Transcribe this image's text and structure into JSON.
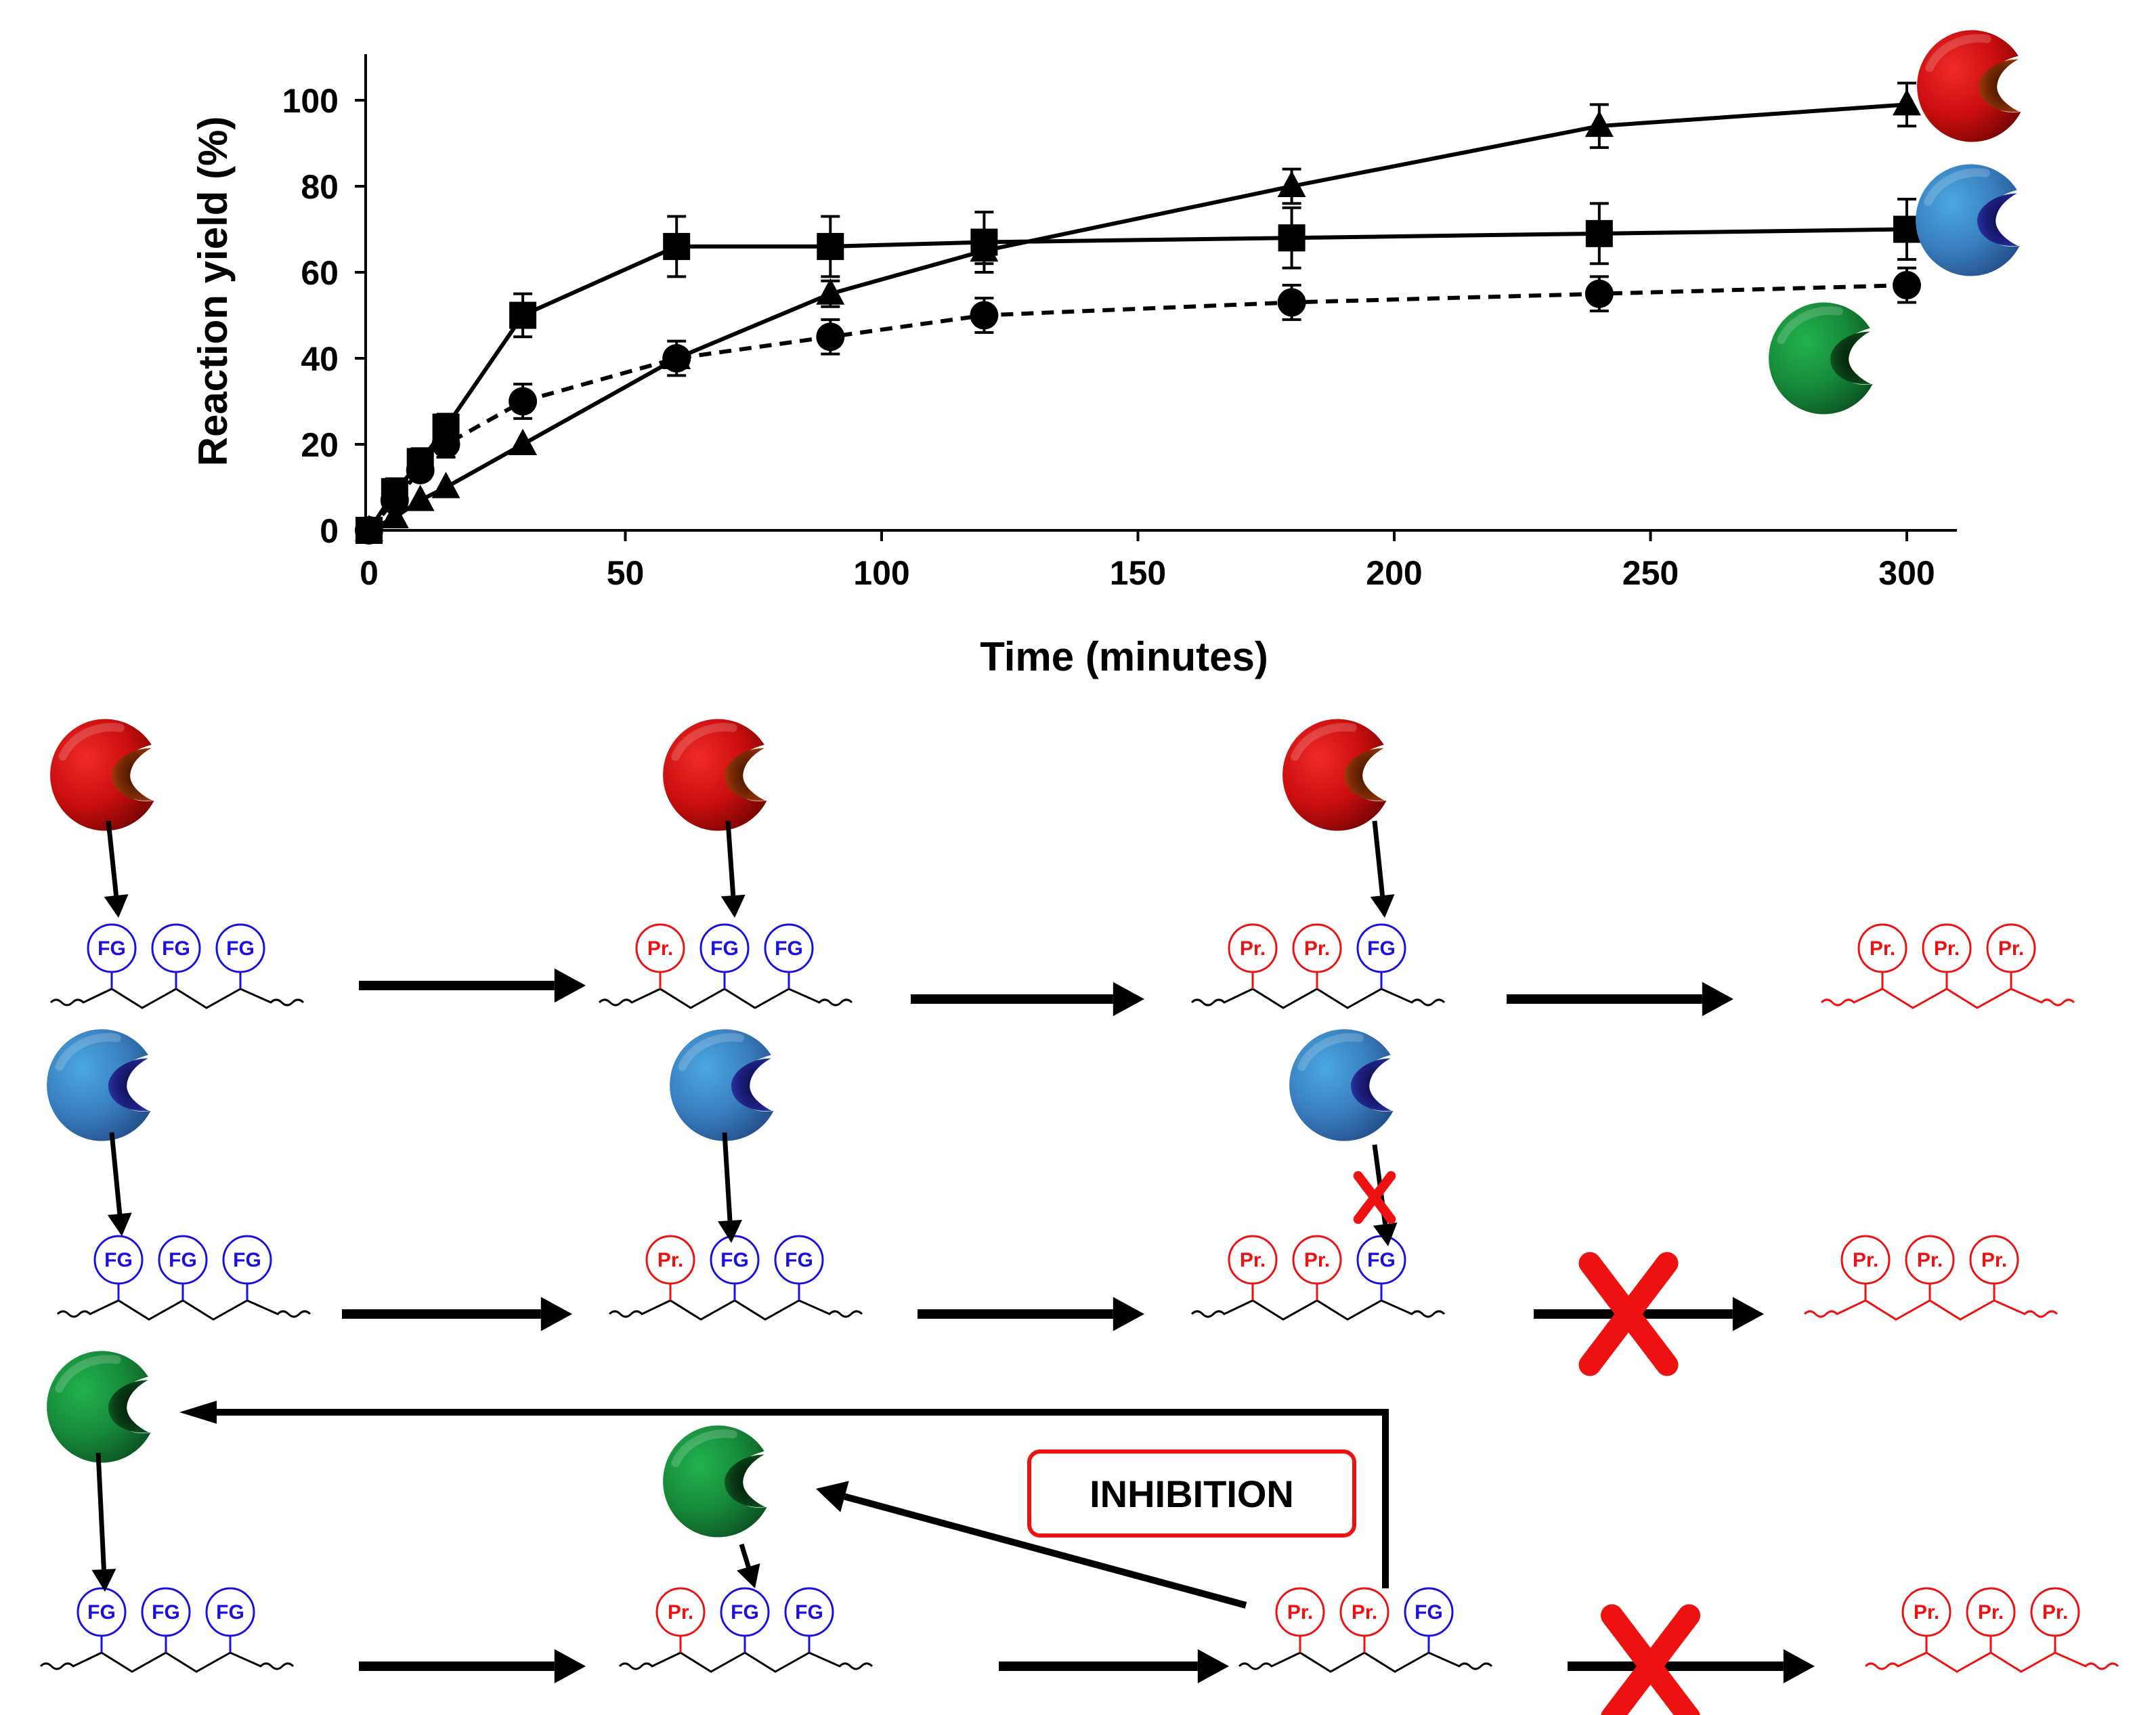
{
  "chart_data": {
    "type": "line",
    "title": "",
    "xlabel": "Time (minutes)",
    "ylabel": "Reaction yield (%)",
    "xlim": [
      0,
      310
    ],
    "ylim": [
      0,
      110
    ],
    "xticks": [
      0,
      50,
      100,
      150,
      200,
      250,
      300
    ],
    "yticks": [
      0,
      20,
      40,
      60,
      80,
      100
    ],
    "grid": false,
    "series": [
      {
        "name": "triangle",
        "enzyme": "red",
        "marker": "triangle",
        "line_style": "solid",
        "x": [
          0,
          5,
          10,
          15,
          30,
          60,
          90,
          120,
          180,
          240,
          300
        ],
        "y": [
          0,
          3,
          7,
          10,
          20,
          40,
          55,
          65,
          80,
          94,
          99
        ],
        "err": [
          0,
          0,
          0,
          0,
          0,
          0,
          3,
          3,
          4,
          5,
          5
        ]
      },
      {
        "name": "square",
        "enzyme": "blue",
        "marker": "square",
        "line_style": "solid",
        "x": [
          0,
          5,
          10,
          15,
          30,
          60,
          90,
          120,
          180,
          240,
          300
        ],
        "y": [
          0,
          9,
          16,
          24,
          50,
          66,
          66,
          67,
          68,
          69,
          70
        ],
        "err": [
          0,
          3,
          3,
          3,
          5,
          7,
          7,
          7,
          7,
          7,
          7
        ]
      },
      {
        "name": "circle",
        "enzyme": "green",
        "marker": "circle",
        "line_style": "dashed",
        "x": [
          0,
          5,
          10,
          15,
          30,
          60,
          90,
          120,
          180,
          240,
          300
        ],
        "y": [
          0,
          7,
          14,
          20,
          30,
          40,
          45,
          50,
          53,
          55,
          57
        ],
        "err": [
          0,
          0,
          0,
          3,
          4,
          4,
          4,
          4,
          4,
          4,
          4
        ]
      }
    ]
  },
  "scheme": {
    "fg_label": "FG",
    "product_label": "Pr.",
    "inhibition_label": "INHIBITION",
    "colors": {
      "fg": "#1a10e0",
      "product": "#ee1111",
      "enzyme_red": "#dd1111",
      "enzyme_blue": "#3b88c8",
      "enzyme_green": "#1c8a3c",
      "block_x": "#ee1111"
    },
    "rows": [
      {
        "enzyme": "red",
        "stages": [
          "0/3",
          "1/3",
          "2/3",
          "3/3"
        ],
        "blocked_final": false,
        "inhibition": false
      },
      {
        "enzyme": "blue",
        "stages": [
          "0/3",
          "1/3",
          "2/3",
          "3/3"
        ],
        "blocked_final": true,
        "inhibition": false
      },
      {
        "enzyme": "green",
        "stages": [
          "0/3",
          "1/3",
          "2/3",
          "3/3"
        ],
        "blocked_final": true,
        "inhibition": true
      }
    ]
  }
}
